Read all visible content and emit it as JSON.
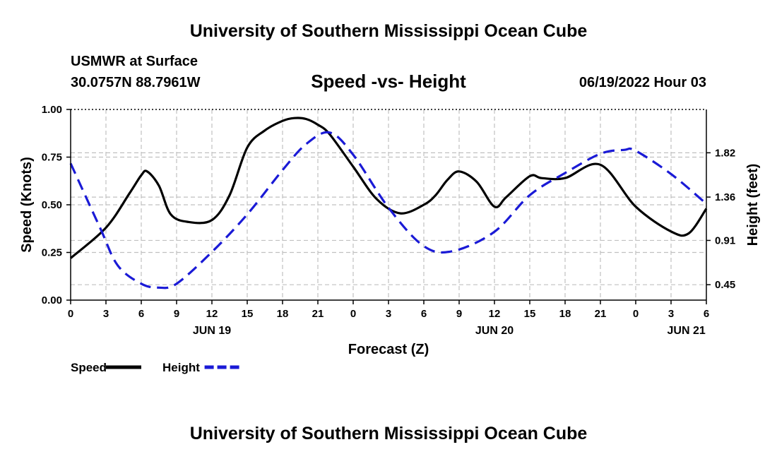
{
  "header": {
    "title": "University of Southern Mississippi Ocean Cube",
    "station": "USMWR at Surface",
    "coords": "30.0757N  88.7961W",
    "subtitle": "Speed -vs- Height",
    "datetime": "06/19/2022 Hour 03"
  },
  "footer": {
    "title": "University of Southern Mississippi Ocean Cube"
  },
  "chart_data": {
    "type": "line",
    "title": "Speed -vs- Height",
    "xlabel": "Forecast (Z)",
    "ylabel": "Speed (Knots)",
    "y2label": "Height (feet)",
    "x_range": [
      0,
      54
    ],
    "x_ticks": [
      0,
      3,
      6,
      9,
      12,
      15,
      18,
      21,
      24,
      27,
      30,
      33,
      36,
      39,
      42,
      45,
      48,
      51,
      54
    ],
    "x_tick_labels": [
      "0",
      "3",
      "6",
      "9",
      "12",
      "15",
      "18",
      "21",
      "0",
      "3",
      "6",
      "9",
      "12",
      "15",
      "18",
      "21",
      "0",
      "3",
      "6"
    ],
    "date_labels": [
      {
        "x": 12,
        "label": "JUN 19"
      },
      {
        "x": 36,
        "label": "JUN 20"
      },
      {
        "x": 52.3,
        "label": "JUN 21"
      }
    ],
    "ylim": [
      0,
      1
    ],
    "y_ticks": [
      0,
      0.25,
      0.5,
      0.75,
      1.0
    ],
    "y_tick_labels": [
      "0.00",
      "0.25",
      "0.50",
      "0.75",
      "1.00"
    ],
    "y2lim": [
      0.29,
      2.27
    ],
    "y2_ticks": [
      0.45,
      0.91,
      1.36,
      1.82
    ],
    "y2_tick_labels": [
      "0.45",
      "0.91",
      "1.36",
      "1.82"
    ],
    "grid": true,
    "legend": [
      {
        "label": "Speed",
        "color": "#000000",
        "style": "solid"
      },
      {
        "label": "Height",
        "color": "#1a1ad6",
        "style": "dashed"
      }
    ],
    "series": [
      {
        "name": "Speed",
        "axis": "left",
        "color": "#000000",
        "style": "solid",
        "x": [
          0,
          3,
          5,
          6,
          6.5,
          7.5,
          8.5,
          10,
          12,
          13.5,
          15,
          16.5,
          18,
          19,
          20,
          21,
          22,
          24,
          26,
          28,
          30,
          31,
          32,
          33,
          34.5,
          36,
          37,
          39,
          40,
          42,
          45,
          48,
          51,
          52.5,
          54
        ],
        "y": [
          0.22,
          0.38,
          0.56,
          0.655,
          0.675,
          0.6,
          0.45,
          0.41,
          0.42,
          0.55,
          0.8,
          0.89,
          0.94,
          0.955,
          0.95,
          0.92,
          0.87,
          0.7,
          0.53,
          0.455,
          0.5,
          0.55,
          0.63,
          0.675,
          0.62,
          0.49,
          0.54,
          0.65,
          0.64,
          0.64,
          0.71,
          0.49,
          0.36,
          0.35,
          0.48
        ]
      },
      {
        "name": "Height",
        "axis": "right",
        "color": "#1a1ad6",
        "style": "dashed",
        "x": [
          0,
          2.5,
          4,
          6,
          7.5,
          9,
          12,
          15,
          18,
          20,
          22,
          24,
          27,
          30,
          32.5,
          36,
          39,
          42,
          45,
          47,
          48,
          51,
          54
        ],
        "y": [
          1.71,
          1.04,
          0.65,
          0.46,
          0.42,
          0.46,
          0.79,
          1.18,
          1.64,
          1.91,
          2.03,
          1.8,
          1.25,
          0.85,
          0.8,
          1.0,
          1.38,
          1.61,
          1.81,
          1.85,
          1.84,
          1.6,
          1.29
        ]
      }
    ]
  }
}
